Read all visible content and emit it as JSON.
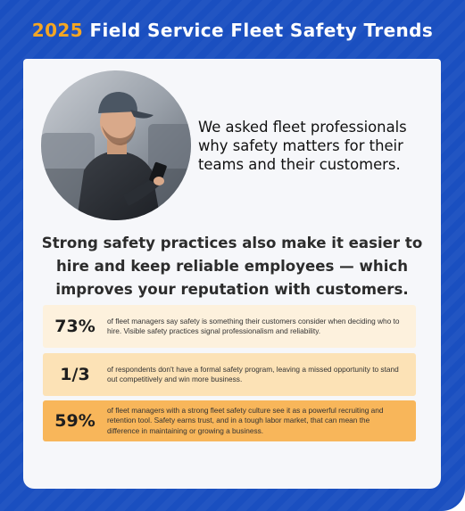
{
  "header": {
    "year": "2025",
    "title": "Field Service Fleet Safety Trends"
  },
  "intro": {
    "text": "We asked fleet professionals why safety matters for their teams and their customers."
  },
  "headline": {
    "text": "Strong safety practices also make it easier to hire and keep reliable employees — which improves your reputation with customers."
  },
  "stats": [
    {
      "value": "73%",
      "text": "of fleet managers say safety is something their customers consider when deciding who to hire. Visible safety practices signal professionalism and reliability."
    },
    {
      "value": "1/3",
      "text": "of respondents don't have a formal safety program, leaving a missed opportunity to stand out competitively and win more business."
    },
    {
      "value": "59%",
      "text": "of fleet managers with a strong fleet safety culture see it as a powerful recruiting and retention tool. Safety earns trust, and in a tough labor market, that can mean the difference in maintaining or growing a business."
    }
  ],
  "colors": {
    "brand_blue": "#1a4fc0",
    "accent_orange": "#f5a623",
    "stat_1": "#fdf1dd",
    "stat_2": "#fce2b6",
    "stat_3": "#f8b65a"
  },
  "photo": {
    "subject": "fleet-technician-with-phone"
  }
}
